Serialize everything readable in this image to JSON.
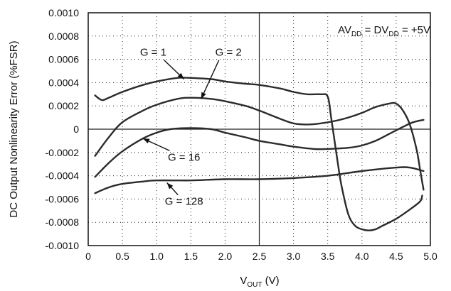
{
  "chart_data": {
    "type": "line",
    "title": "",
    "xlabel": {
      "main": "V",
      "sub": "OUT",
      "unit": " (V)"
    },
    "ylabel": "DC Output Nonlinearity Error (%FSR)",
    "xlim": [
      0,
      5
    ],
    "ylim": [
      -0.001,
      0.001
    ],
    "x_ticks": [
      "0",
      "0.5",
      "1.0",
      "1.5",
      "2.0",
      "2.5",
      "3.0",
      "3.5",
      "4.0",
      "4.5",
      "5.0"
    ],
    "y_ticks": [
      "0.0010",
      "0.0008",
      "0.0006",
      "0.0004",
      "0.0002",
      "0",
      "-0.0002",
      "-0.0004",
      "-0.0006",
      "-0.0008",
      "-0.0010"
    ],
    "grid": true,
    "condition": {
      "p1": "AV",
      "s1": "DD",
      "p2": " = DV",
      "s2": "DD",
      "p3": " = +5V"
    },
    "series": [
      {
        "name": "G = 1",
        "x": [
          0.1,
          0.2,
          0.3,
          0.5,
          0.8,
          1.0,
          1.3,
          1.5,
          1.8,
          2.0,
          2.3,
          2.5,
          2.8,
          3.0,
          3.2,
          3.4,
          3.5,
          3.55,
          3.6,
          3.65,
          3.7,
          3.8,
          3.9,
          4.0,
          4.1,
          4.2,
          4.3,
          4.5,
          4.7,
          4.85,
          4.88
        ],
        "y": [
          0.00029,
          0.00025,
          0.00027,
          0.00032,
          0.00038,
          0.00041,
          0.00044,
          0.00044,
          0.00043,
          0.00041,
          0.00039,
          0.00038,
          0.00035,
          0.00032,
          0.0003,
          0.0003,
          0.00028,
          0.0001,
          -0.0001,
          -0.0003,
          -0.00048,
          -0.00073,
          -0.00083,
          -0.00086,
          -0.00087,
          -0.00086,
          -0.00083,
          -0.00077,
          -0.00069,
          -0.00062,
          -0.00057
        ]
      },
      {
        "name": "G = 2",
        "x": [
          0.1,
          0.3,
          0.5,
          0.8,
          1.0,
          1.3,
          1.5,
          1.8,
          2.0,
          2.3,
          2.5,
          2.8,
          3.0,
          3.2,
          3.4,
          3.6,
          3.8,
          4.0,
          4.2,
          4.4,
          4.5,
          4.6,
          4.7,
          4.8,
          4.85,
          4.9
        ],
        "y": [
          -0.00023,
          -7e-05,
          6e-05,
          0.00016,
          0.00021,
          0.00026,
          0.00027,
          0.00026,
          0.00024,
          0.0002,
          0.00016,
          9e-05,
          5e-05,
          4e-05,
          5e-05,
          7e-05,
          0.0001,
          0.00014,
          0.00019,
          0.00022,
          0.00022,
          0.00016,
          4e-05,
          -0.00018,
          -0.00035,
          -0.00052
        ]
      },
      {
        "name": "G = 16",
        "x": [
          0.1,
          0.3,
          0.5,
          0.8,
          1.0,
          1.2,
          1.5,
          1.8,
          2.0,
          2.3,
          2.5,
          2.8,
          3.0,
          3.3,
          3.5,
          3.8,
          4.0,
          4.2,
          4.4,
          4.6,
          4.75,
          4.9
        ],
        "y": [
          -0.00041,
          -0.00029,
          -0.00019,
          -8e-05,
          -3e-05,
          0.0,
          1e-05,
          0.0,
          -3e-05,
          -7e-05,
          -0.0001,
          -0.00013,
          -0.00015,
          -0.00017,
          -0.00017,
          -0.00016,
          -0.00014,
          -0.0001,
          -4e-05,
          2e-05,
          6e-05,
          8e-05
        ]
      },
      {
        "name": "G = 128",
        "x": [
          0.1,
          0.3,
          0.5,
          0.8,
          1.0,
          1.5,
          2.0,
          2.5,
          3.0,
          3.5,
          4.0,
          4.5,
          4.7,
          4.9
        ],
        "y": [
          -0.00055,
          -0.0005,
          -0.00047,
          -0.00045,
          -0.00044,
          -0.00044,
          -0.00043,
          -0.00043,
          -0.00042,
          -0.0004,
          -0.00036,
          -0.00033,
          -0.00033,
          -0.00036
        ]
      }
    ],
    "labels": [
      {
        "text": "G = 1",
        "series": "G = 1",
        "pos": [
          0.95,
          0.00063
        ],
        "arrow_to": [
          1.4,
          0.00043
        ]
      },
      {
        "text": "G = 2",
        "series": "G = 2",
        "pos": [
          2.05,
          0.00063
        ],
        "arrow_to": [
          1.65,
          0.00026
        ]
      },
      {
        "text": "G = 16",
        "series": "G = 16",
        "pos": [
          1.4,
          -0.00027
        ],
        "arrow_to": [
          0.8,
          -8e-05
        ]
      },
      {
        "text": "G = 128",
        "series": "G = 128",
        "pos": [
          1.4,
          -0.00065
        ],
        "arrow_to": [
          1.15,
          -0.00046
        ]
      }
    ]
  }
}
